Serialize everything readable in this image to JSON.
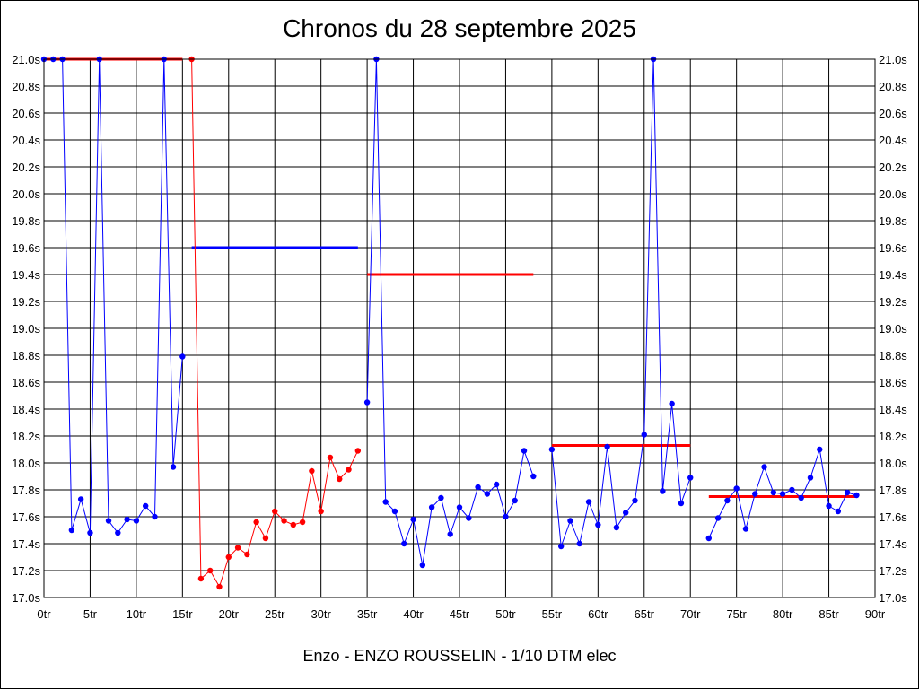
{
  "chart_data": {
    "type": "line",
    "title": "Chronos du 28 septembre 2025",
    "footer": "Enzo - ENZO ROUSSELIN - 1/10 DTM elec",
    "ylim": [
      17.0,
      21.0
    ],
    "xlim": [
      0,
      90
    ],
    "grid": true,
    "x_ticks": [
      {
        "v": 0,
        "label": "0tr"
      },
      {
        "v": 5,
        "label": "5tr"
      },
      {
        "v": 10,
        "label": "10tr"
      },
      {
        "v": 15,
        "label": "15tr"
      },
      {
        "v": 20,
        "label": "20tr"
      },
      {
        "v": 25,
        "label": "25tr"
      },
      {
        "v": 30,
        "label": "30tr"
      },
      {
        "v": 35,
        "label": "35tr"
      },
      {
        "v": 40,
        "label": "40tr"
      },
      {
        "v": 45,
        "label": "45tr"
      },
      {
        "v": 50,
        "label": "50tr"
      },
      {
        "v": 55,
        "label": "55tr"
      },
      {
        "v": 60,
        "label": "60tr"
      },
      {
        "v": 65,
        "label": "65tr"
      },
      {
        "v": 70,
        "label": "70tr"
      },
      {
        "v": 75,
        "label": "75tr"
      },
      {
        "v": 80,
        "label": "80tr"
      },
      {
        "v": 85,
        "label": "85tr"
      },
      {
        "v": 90,
        "label": "90tr"
      }
    ],
    "y_ticks": [
      {
        "v": 17.0,
        "label": "17.0s"
      },
      {
        "v": 17.2,
        "label": "17.2s"
      },
      {
        "v": 17.4,
        "label": "17.4s"
      },
      {
        "v": 17.6,
        "label": "17.6s"
      },
      {
        "v": 17.8,
        "label": "17.8s"
      },
      {
        "v": 18.0,
        "label": "18.0s"
      },
      {
        "v": 18.2,
        "label": "18.2s"
      },
      {
        "v": 18.4,
        "label": "18.4s"
      },
      {
        "v": 18.6,
        "label": "18.6s"
      },
      {
        "v": 18.8,
        "label": "18.8s"
      },
      {
        "v": 19.0,
        "label": "19.0s"
      },
      {
        "v": 19.2,
        "label": "19.2s"
      },
      {
        "v": 19.4,
        "label": "19.4s"
      },
      {
        "v": 19.6,
        "label": "19.6s"
      },
      {
        "v": 19.8,
        "label": "19.8s"
      },
      {
        "v": 20.0,
        "label": "20.0s"
      },
      {
        "v": 20.2,
        "label": "20.2s"
      },
      {
        "v": 20.4,
        "label": "20.4s"
      },
      {
        "v": 20.6,
        "label": "20.6s"
      },
      {
        "v": 20.8,
        "label": "20.8s"
      },
      {
        "v": 21.0,
        "label": "21.0s"
      }
    ],
    "series": [
      {
        "color": "#0000ff",
        "points": [
          [
            0,
            21.0
          ],
          [
            1,
            21.0
          ],
          [
            2,
            21.0
          ],
          [
            3,
            17.5
          ],
          [
            4,
            17.73
          ],
          [
            5,
            17.48
          ],
          [
            6,
            21.0
          ],
          [
            7,
            17.57
          ],
          [
            8,
            17.48
          ],
          [
            9,
            17.58
          ],
          [
            10,
            17.57
          ],
          [
            11,
            17.68
          ],
          [
            12,
            17.6
          ],
          [
            13,
            21.0
          ],
          [
            14,
            17.97
          ],
          [
            15,
            18.79
          ]
        ]
      },
      {
        "color": "#ff0000",
        "points": [
          [
            16,
            21.0
          ],
          [
            17,
            17.14
          ],
          [
            18,
            17.2
          ],
          [
            19,
            17.08
          ],
          [
            20,
            17.3
          ],
          [
            21,
            17.37
          ],
          [
            22,
            17.32
          ],
          [
            23,
            17.56
          ],
          [
            24,
            17.44
          ],
          [
            25,
            17.64
          ],
          [
            26,
            17.57
          ],
          [
            27,
            17.54
          ],
          [
            28,
            17.56
          ],
          [
            29,
            17.94
          ],
          [
            30,
            17.64
          ],
          [
            31,
            18.04
          ],
          [
            32,
            17.88
          ],
          [
            33,
            17.95
          ],
          [
            34,
            18.09
          ]
        ]
      },
      {
        "color": "#0000ff",
        "points": [
          [
            35,
            18.45
          ],
          [
            36,
            21.0
          ],
          [
            37,
            17.71
          ],
          [
            38,
            17.64
          ],
          [
            39,
            17.4
          ],
          [
            40,
            17.58
          ],
          [
            41,
            17.24
          ],
          [
            42,
            17.67
          ],
          [
            43,
            17.74
          ],
          [
            44,
            17.47
          ],
          [
            45,
            17.67
          ],
          [
            46,
            17.59
          ],
          [
            47,
            17.82
          ],
          [
            48,
            17.77
          ],
          [
            49,
            17.84
          ],
          [
            50,
            17.6
          ],
          [
            51,
            17.72
          ],
          [
            52,
            18.09
          ],
          [
            53,
            17.9
          ]
        ]
      },
      {
        "color": "#0000ff",
        "points": [
          [
            55,
            18.1
          ],
          [
            56,
            17.38
          ],
          [
            57,
            17.57
          ],
          [
            58,
            17.4
          ],
          [
            59,
            17.71
          ],
          [
            60,
            17.54
          ],
          [
            61,
            18.12
          ],
          [
            62,
            17.52
          ],
          [
            63,
            17.63
          ],
          [
            64,
            17.72
          ],
          [
            65,
            18.21
          ],
          [
            66,
            21.0
          ],
          [
            67,
            17.79
          ],
          [
            68,
            18.44
          ],
          [
            69,
            17.7
          ],
          [
            70,
            17.89
          ]
        ]
      },
      {
        "color": "#0000ff",
        "points": [
          [
            72,
            17.44
          ],
          [
            73,
            17.59
          ],
          [
            74,
            17.72
          ],
          [
            75,
            17.81
          ],
          [
            76,
            17.51
          ],
          [
            77,
            17.77
          ],
          [
            78,
            17.97
          ],
          [
            79,
            17.78
          ],
          [
            80,
            17.77
          ],
          [
            81,
            17.8
          ],
          [
            82,
            17.74
          ],
          [
            83,
            17.89
          ],
          [
            84,
            18.1
          ],
          [
            85,
            17.68
          ],
          [
            86,
            17.64
          ],
          [
            87,
            17.78
          ],
          [
            88,
            17.76
          ]
        ]
      }
    ],
    "reference_lines": [
      {
        "color": "#ff0000",
        "x_start": 0,
        "x_end": 15,
        "y": 21.0
      },
      {
        "color": "#0000ff",
        "x_start": 16,
        "x_end": 34,
        "y": 19.6
      },
      {
        "color": "#ff0000",
        "x_start": 35,
        "x_end": 53,
        "y": 19.4
      },
      {
        "color": "#ff0000",
        "x_start": 55,
        "x_end": 70,
        "y": 18.13
      },
      {
        "color": "#ff0000",
        "x_start": 72,
        "x_end": 88,
        "y": 17.75
      }
    ]
  }
}
